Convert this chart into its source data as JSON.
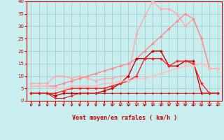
{
  "background_color": "#c8eef0",
  "grid_color": "#a0d0d0",
  "xlabel": "Vent moyen/en rafales ( km/h )",
  "xlim": [
    -0.5,
    23.5
  ],
  "ylim": [
    0,
    40
  ],
  "yticks": [
    0,
    5,
    10,
    15,
    20,
    25,
    30,
    35,
    40
  ],
  "xticks": [
    0,
    1,
    2,
    3,
    4,
    5,
    6,
    7,
    8,
    9,
    10,
    11,
    12,
    13,
    14,
    15,
    16,
    17,
    18,
    19,
    20,
    21,
    22,
    23
  ],
  "series": [
    {
      "x": [
        0,
        1,
        2,
        3,
        4,
        5,
        6,
        7,
        8,
        9,
        10,
        11,
        12,
        13,
        14,
        15,
        16,
        17,
        18,
        19,
        20,
        21,
        22,
        23
      ],
      "y": [
        7,
        7,
        7,
        10,
        10,
        9,
        10,
        9,
        8,
        9,
        9,
        10,
        10,
        27,
        34,
        40,
        37,
        37,
        35,
        30,
        33,
        25,
        13,
        13
      ],
      "color": "#ffaaaa",
      "linewidth": 1.0,
      "marker": "D",
      "markersize": 2.0
    },
    {
      "x": [
        0,
        1,
        2,
        3,
        4,
        5,
        6,
        7,
        8,
        9,
        10,
        11,
        12,
        13,
        14,
        15,
        16,
        17,
        18,
        19,
        20,
        21,
        22,
        23
      ],
      "y": [
        6,
        6,
        6,
        6,
        7,
        8,
        9,
        10,
        11,
        12,
        13,
        14,
        15,
        17,
        20,
        23,
        26,
        29,
        32,
        35,
        33,
        25,
        13,
        13
      ],
      "color": "#ff8888",
      "linewidth": 1.0,
      "marker": "D",
      "markersize": 2.0
    },
    {
      "x": [
        0,
        1,
        2,
        3,
        4,
        5,
        6,
        7,
        8,
        9,
        10,
        11,
        12,
        13,
        14,
        15,
        16,
        17,
        18,
        19,
        20,
        21,
        22,
        23
      ],
      "y": [
        3,
        3,
        3,
        2,
        3,
        3,
        3,
        3,
        3,
        4,
        5,
        7,
        10,
        17,
        17,
        20,
        20,
        14,
        14,
        16,
        16,
        3,
        3,
        3
      ],
      "color": "#cc0000",
      "linewidth": 1.0,
      "marker": "D",
      "markersize": 2.0
    },
    {
      "x": [
        0,
        1,
        2,
        3,
        4,
        5,
        6,
        7,
        8,
        9,
        10,
        11,
        12,
        13,
        14,
        15,
        16,
        17,
        18,
        19,
        20,
        21,
        22,
        23
      ],
      "y": [
        3,
        3,
        3,
        3,
        4,
        5,
        5,
        5,
        5,
        5,
        6,
        7,
        8,
        10,
        17,
        17,
        17,
        14,
        16,
        16,
        15,
        7,
        3,
        3
      ],
      "color": "#ff2222",
      "linewidth": 1.0,
      "marker": "D",
      "markersize": 2.0
    },
    {
      "x": [
        0,
        1,
        2,
        3,
        4,
        5,
        6,
        7,
        8,
        9,
        10,
        11,
        12,
        13,
        14,
        15,
        16,
        17,
        18,
        19,
        20,
        21,
        22,
        23
      ],
      "y": [
        6,
        6,
        6,
        5,
        5,
        6,
        6,
        6,
        6,
        7,
        7,
        8,
        8,
        9,
        9,
        10,
        11,
        12,
        13,
        14,
        14,
        15,
        13,
        13
      ],
      "color": "#ffbbbb",
      "linewidth": 1.0,
      "marker": "D",
      "markersize": 2.0
    },
    {
      "x": [
        0,
        1,
        2,
        3,
        4,
        5,
        6,
        7,
        8,
        9,
        10,
        11,
        12,
        13,
        14,
        15,
        16,
        17,
        18,
        19,
        20,
        21,
        22,
        23
      ],
      "y": [
        3,
        3,
        3,
        1,
        1,
        2,
        3,
        3,
        3,
        3,
        3,
        3,
        3,
        3,
        3,
        3,
        3,
        3,
        3,
        3,
        3,
        3,
        3,
        3
      ],
      "color": "#dd2222",
      "linewidth": 0.8,
      "marker": "D",
      "markersize": 1.5
    }
  ],
  "arrow_color": "#cc0000",
  "tick_color": "#cc0000",
  "label_color": "#cc0000"
}
